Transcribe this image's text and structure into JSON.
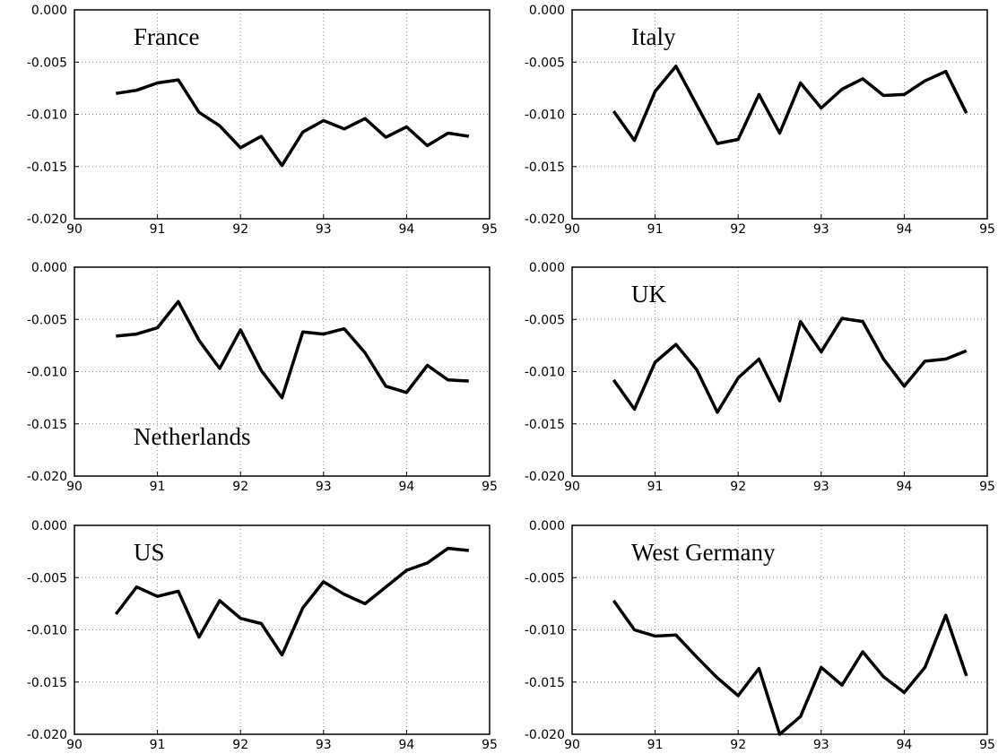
{
  "chart_data": [
    {
      "type": "line",
      "title": "France",
      "title_corner": "upper left",
      "color": "#000000",
      "grid": true,
      "x": [
        90.5,
        90.75,
        91,
        91.25,
        91.5,
        91.75,
        92,
        92.25,
        92.5,
        92.75,
        93,
        93.25,
        93.5,
        93.75,
        94,
        94.25,
        94.5,
        94.75
      ],
      "values": [
        -0.008,
        -0.0077,
        -0.007,
        -0.0067,
        -0.0098,
        -0.0111,
        -0.0132,
        -0.0121,
        -0.0149,
        -0.0117,
        -0.0106,
        -0.0114,
        -0.0104,
        -0.0122,
        -0.0112,
        -0.013,
        -0.0118,
        -0.0121
      ],
      "xlim": [
        90,
        95
      ],
      "xticks": [
        90,
        91,
        92,
        93,
        94,
        95
      ],
      "ylim": [
        -0.02,
        0
      ],
      "yticks": [
        {
          "value": -0.02,
          "label": "-0.020"
        },
        {
          "value": -0.015,
          "label": "-0.015"
        },
        {
          "value": -0.01,
          "label": "-0.010"
        },
        {
          "value": -0.005,
          "label": "-0.005"
        },
        {
          "value": 0,
          "label": "0.000"
        }
      ]
    },
    {
      "type": "line",
      "title": "Italy",
      "title_corner": "upper left",
      "color": "#000000",
      "grid": true,
      "x": [
        90.5,
        90.75,
        91,
        91.25,
        91.5,
        91.75,
        92,
        92.25,
        92.5,
        92.75,
        93,
        93.25,
        93.5,
        93.75,
        94,
        94.25,
        94.5,
        94.75
      ],
      "values": [
        -0.0097,
        -0.0125,
        -0.0078,
        -0.0054,
        -0.0091,
        -0.0128,
        -0.0124,
        -0.0081,
        -0.0118,
        -0.007,
        -0.0094,
        -0.0076,
        -0.0066,
        -0.0082,
        -0.0081,
        -0.0068,
        -0.0059,
        -0.0099
      ],
      "xlim": [
        90,
        95
      ],
      "xticks": [
        90,
        91,
        92,
        93,
        94,
        95
      ],
      "ylim": [
        -0.02,
        0
      ],
      "yticks": [
        {
          "value": -0.02,
          "label": "-0.020"
        },
        {
          "value": -0.015,
          "label": "-0.015"
        },
        {
          "value": -0.01,
          "label": "-0.010"
        },
        {
          "value": -0.005,
          "label": "-0.005"
        },
        {
          "value": 0,
          "label": "0.000"
        }
      ]
    },
    {
      "type": "line",
      "title": "Netherlands",
      "title_corner": "lower left",
      "color": "#000000",
      "grid": true,
      "x": [
        90.5,
        90.75,
        91,
        91.25,
        91.5,
        91.75,
        92,
        92.25,
        92.5,
        92.75,
        93,
        93.25,
        93.5,
        93.75,
        94,
        94.25,
        94.5,
        94.75
      ],
      "values": [
        -0.0066,
        -0.0064,
        -0.0058,
        -0.0033,
        -0.007,
        -0.0097,
        -0.006,
        -0.0099,
        -0.0125,
        -0.0062,
        -0.0064,
        -0.0059,
        -0.0082,
        -0.0114,
        -0.012,
        -0.0094,
        -0.0108,
        -0.0109
      ],
      "xlim": [
        90,
        95
      ],
      "xticks": [
        90,
        91,
        92,
        93,
        94,
        95
      ],
      "ylim": [
        -0.02,
        0
      ],
      "yticks": [
        {
          "value": -0.02,
          "label": "-0.020"
        },
        {
          "value": -0.015,
          "label": "-0.015"
        },
        {
          "value": -0.01,
          "label": "-0.010"
        },
        {
          "value": -0.005,
          "label": "-0.005"
        },
        {
          "value": 0,
          "label": "0.000"
        }
      ]
    },
    {
      "type": "line",
      "title": "UK",
      "title_corner": "upper left",
      "color": "#000000",
      "grid": true,
      "x": [
        90.5,
        90.75,
        91,
        91.25,
        91.5,
        91.75,
        92,
        92.25,
        92.5,
        92.75,
        93,
        93.25,
        93.5,
        93.75,
        94,
        94.25,
        94.5,
        94.75
      ],
      "values": [
        -0.0108,
        -0.0136,
        -0.0091,
        -0.0074,
        -0.0098,
        -0.0139,
        -0.0106,
        -0.0088,
        -0.0128,
        -0.0052,
        -0.0081,
        -0.0049,
        -0.0052,
        -0.0088,
        -0.0114,
        -0.009,
        -0.0088,
        -0.008
      ],
      "xlim": [
        90,
        95
      ],
      "xticks": [
        90,
        91,
        92,
        93,
        94,
        95
      ],
      "ylim": [
        -0.02,
        0
      ],
      "yticks": [
        {
          "value": -0.02,
          "label": "-0.020"
        },
        {
          "value": -0.015,
          "label": "-0.015"
        },
        {
          "value": -0.01,
          "label": "-0.010"
        },
        {
          "value": -0.005,
          "label": "-0.005"
        },
        {
          "value": 0,
          "label": "0.000"
        }
      ]
    },
    {
      "type": "line",
      "title": "US",
      "title_corner": "upper left",
      "color": "#000000",
      "grid": true,
      "x": [
        90.5,
        90.75,
        91,
        91.25,
        91.5,
        91.75,
        92,
        92.25,
        92.5,
        92.75,
        93,
        93.25,
        93.5,
        93.75,
        94,
        94.25,
        94.5,
        94.75
      ],
      "values": [
        -0.0085,
        -0.0059,
        -0.0068,
        -0.0063,
        -0.0107,
        -0.0072,
        -0.0089,
        -0.0094,
        -0.0124,
        -0.0079,
        -0.0054,
        -0.0066,
        -0.0075,
        -0.0059,
        -0.0043,
        -0.0036,
        -0.0022,
        -0.0024
      ],
      "xlim": [
        90,
        95
      ],
      "xticks": [
        90,
        91,
        92,
        93,
        94,
        95
      ],
      "ylim": [
        -0.02,
        0
      ],
      "yticks": [
        {
          "value": -0.02,
          "label": "-0.020"
        },
        {
          "value": -0.015,
          "label": "-0.015"
        },
        {
          "value": -0.01,
          "label": "-0.010"
        },
        {
          "value": -0.005,
          "label": "-0.005"
        },
        {
          "value": 0,
          "label": "0.000"
        }
      ]
    },
    {
      "type": "line",
      "title": "West Germany",
      "title_corner": "upper left",
      "color": "#000000",
      "grid": true,
      "x": [
        90.5,
        90.75,
        91,
        91.25,
        91.5,
        91.75,
        92,
        92.25,
        92.5,
        92.75,
        93,
        93.25,
        93.5,
        93.75,
        94,
        94.25,
        94.5,
        94.75
      ],
      "values": [
        -0.0072,
        -0.01,
        -0.0106,
        -0.0105,
        -0.0126,
        -0.0146,
        -0.0163,
        -0.0137,
        -0.02,
        -0.0183,
        -0.0136,
        -0.0153,
        -0.0121,
        -0.0145,
        -0.016,
        -0.0136,
        -0.0086,
        -0.0144
      ],
      "xlim": [
        90,
        95
      ],
      "xticks": [
        90,
        91,
        92,
        93,
        94,
        95
      ],
      "ylim": [
        -0.02,
        0
      ],
      "yticks": [
        {
          "value": -0.02,
          "label": "-0.020"
        },
        {
          "value": -0.015,
          "label": "-0.015"
        },
        {
          "value": -0.01,
          "label": "-0.010"
        },
        {
          "value": -0.005,
          "label": "-0.005"
        },
        {
          "value": 0,
          "label": "0.000"
        }
      ]
    }
  ]
}
